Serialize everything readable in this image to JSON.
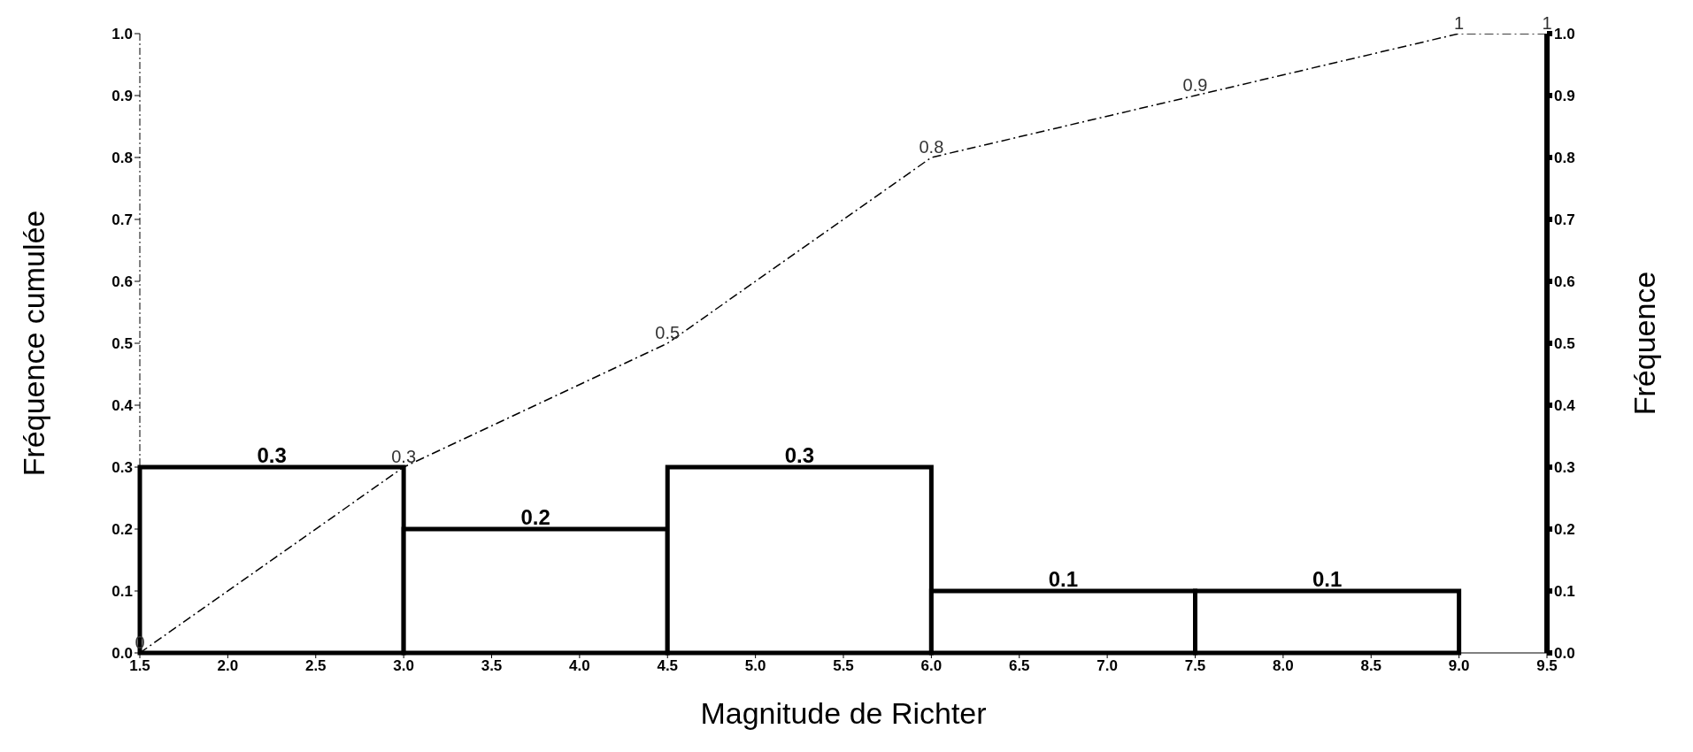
{
  "chart_data": {
    "type": "histogram",
    "xlabel": "Magnitude de Richter",
    "ylabel": "Fréquence cumulée",
    "y2label": "Fréquence",
    "xlim": [
      1.5,
      9.5
    ],
    "xticks": [
      1.5,
      {
        "value": 2,
        "label": "2.0"
      },
      2.5,
      {
        "value": 3,
        "label": "3.0"
      },
      3.5,
      {
        "value": 4,
        "label": "4.0"
      },
      4.5,
      {
        "value": 5,
        "label": "5.0"
      },
      5.5,
      {
        "value": 6,
        "label": "6.0"
      },
      6.5,
      {
        "value": 7,
        "label": "7.0"
      },
      7.5,
      {
        "value": 8,
        "label": "8.0"
      },
      8.5,
      {
        "value": 9,
        "label": "9.0"
      },
      9.5
    ],
    "ylim": [
      0,
      1
    ],
    "yticks": [
      {
        "value": 0,
        "label": "0.0"
      },
      0.1,
      0.2,
      0.3,
      0.4,
      0.5,
      0.6,
      0.7,
      0.8,
      0.9,
      {
        "value": 1,
        "label": "1.0"
      }
    ],
    "y2lim": [
      0,
      1
    ],
    "y2ticks": [
      {
        "value": 0,
        "label": "0.0"
      },
      0.1,
      0.2,
      0.3,
      0.4,
      0.5,
      0.6,
      0.7,
      0.8,
      0.9,
      {
        "value": 1,
        "label": "1.0"
      }
    ],
    "bins": [
      1.5,
      3,
      4.5,
      6,
      7.5,
      9
    ],
    "values": [
      0.3,
      0.2,
      0.3,
      0.1,
      0.1
    ],
    "color": "#000000",
    "data_labels": true,
    "series": [
      {
        "type": "line",
        "color": "#000000",
        "line_style": "dashed",
        "x": [
          1.5,
          3,
          4.5,
          6,
          7.5,
          9,
          9.5
        ],
        "values": [
          0,
          0.3,
          0.5,
          0.8,
          0.9,
          1,
          1
        ],
        "value_labels": [
          "0",
          "0.3",
          "0.5",
          "0.8",
          "0.9",
          "1",
          "1"
        ]
      }
    ]
  }
}
